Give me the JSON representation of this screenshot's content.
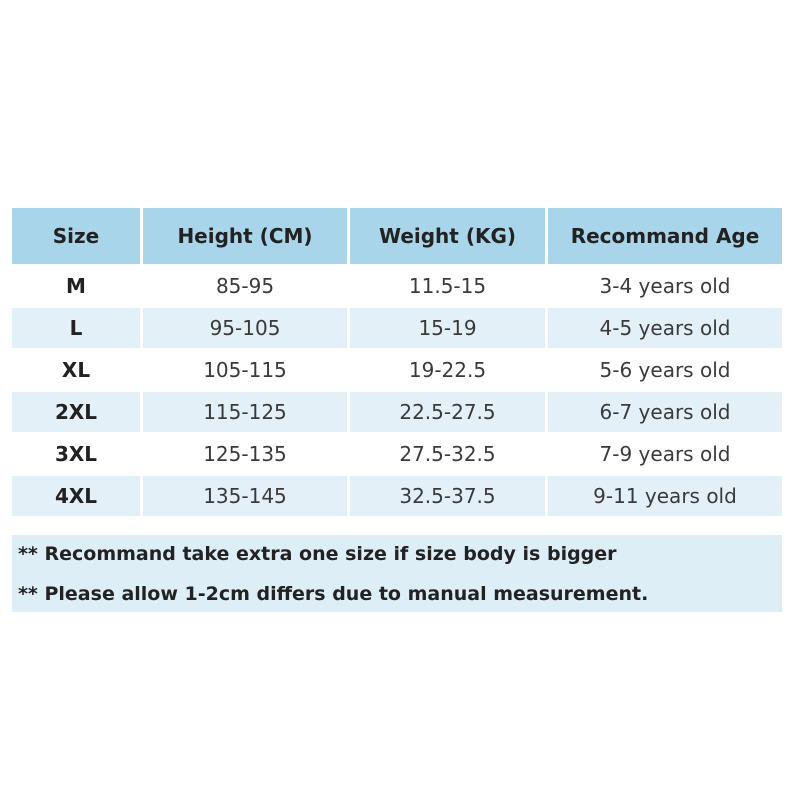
{
  "table": {
    "header": [
      "Size",
      "Height (CM)",
      "Weight (KG)",
      "Recommand Age"
    ],
    "rows": [
      [
        "M",
        "85-95",
        "11.5-15",
        "3-4 years old"
      ],
      [
        "L",
        "95-105",
        "15-19",
        "4-5 years old"
      ],
      [
        "XL",
        "105-115",
        "19-22.5",
        "5-6 years old"
      ],
      [
        "2XL",
        "115-125",
        "22.5-27.5",
        "6-7 years old"
      ],
      [
        "3XL",
        "125-135",
        "27.5-32.5",
        "7-9 years old"
      ],
      [
        "4XL",
        "135-145",
        "32.5-37.5",
        "9-11 years old"
      ]
    ]
  },
  "notes": [
    "** Recommand take extra one size if size body is bigger",
    "** Please allow 1-2cm differs due to manual measurement."
  ]
}
